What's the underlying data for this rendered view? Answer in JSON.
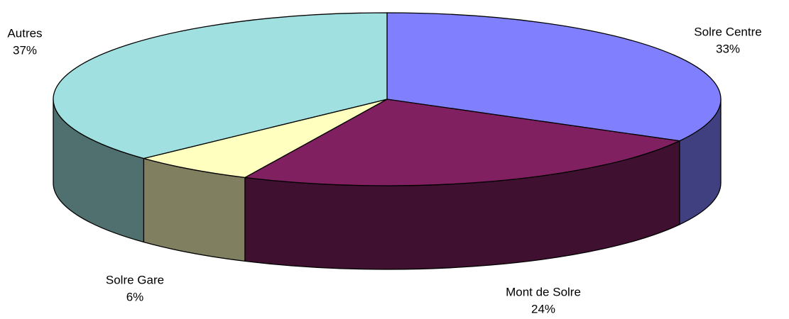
{
  "chart_data": {
    "type": "pie3d",
    "categories": [
      "Solre Centre",
      "Mont de Solre",
      "Solre Gare",
      "Autres"
    ],
    "values": [
      33,
      24,
      6,
      37
    ],
    "value_labels": [
      "33%",
      "24%",
      "6%",
      "37%"
    ],
    "colors": [
      "#8080ff",
      "#802060",
      "#ffffc0",
      "#a0e0e0"
    ]
  }
}
